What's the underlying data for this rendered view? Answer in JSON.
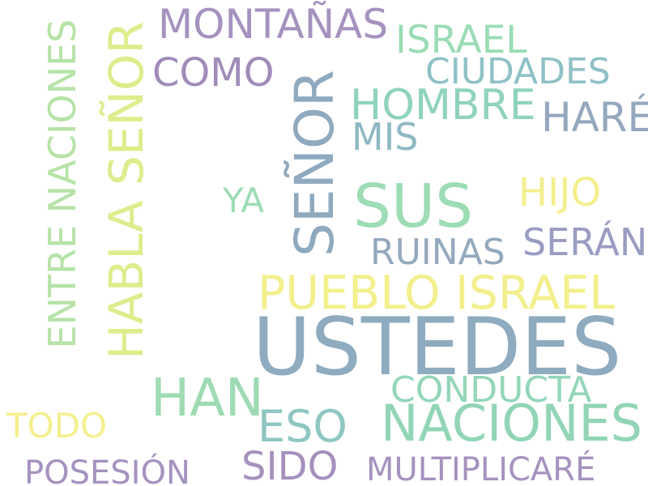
{
  "words": {
    "ustedes": {
      "text": "USTEDES",
      "color": "#8eabbf"
    },
    "naciones": {
      "text": "NACIONES",
      "color": "#92d5b6"
    },
    "pueblo_israel": {
      "text": "PUEBLO ISRAEL",
      "color": "#f3ef8c"
    },
    "habla_senor": {
      "text": "HABLA SEÑOR",
      "color": "#dced8c"
    },
    "senor": {
      "text": "SEÑOR",
      "color": "#8fa9bf"
    },
    "sus": {
      "text": "SUS",
      "color": "#9ddcb5"
    },
    "han": {
      "text": "HAN",
      "color": "#9edbb3"
    },
    "entre_naciones": {
      "text": "ENTRE NACIONES",
      "color": "#b6e3a8"
    },
    "montanas": {
      "text": "MONTAÑAS",
      "color": "#a592bf"
    },
    "como": {
      "text": "COMO",
      "color": "#a08bb9"
    },
    "israel": {
      "text": "ISRAEL",
      "color": "#9bdcb5"
    },
    "ciudades": {
      "text": "CIUDADES",
      "color": "#8fc1c6"
    },
    "hombre": {
      "text": "HOMBRE",
      "color": "#8fd3bb"
    },
    "hare": {
      "text": "HARÉ",
      "color": "#94a7be"
    },
    "mis": {
      "text": "MIS",
      "color": "#8fb8c3"
    },
    "hijo": {
      "text": "HIJO",
      "color": "#f4ef8e"
    },
    "ya": {
      "text": "YA",
      "color": "#9ddcb5"
    },
    "seran": {
      "text": "SERÁN",
      "color": "#9b9cc2"
    },
    "ruinas": {
      "text": "RUINAS",
      "color": "#94a8bd"
    },
    "conducta": {
      "text": "CONDUCTA",
      "color": "#93d6b9"
    },
    "eso": {
      "text": "ESO",
      "color": "#8fc7c2"
    },
    "todo": {
      "text": "TODO",
      "color": "#f4ef8e"
    },
    "sido": {
      "text": "SIDO",
      "color": "#a590bd"
    },
    "posesion": {
      "text": "POSESIÓN",
      "color": "#a592bf"
    },
    "multiplicare": {
      "text": "MULTIPLICARÉ",
      "color": "#a592bf"
    }
  }
}
